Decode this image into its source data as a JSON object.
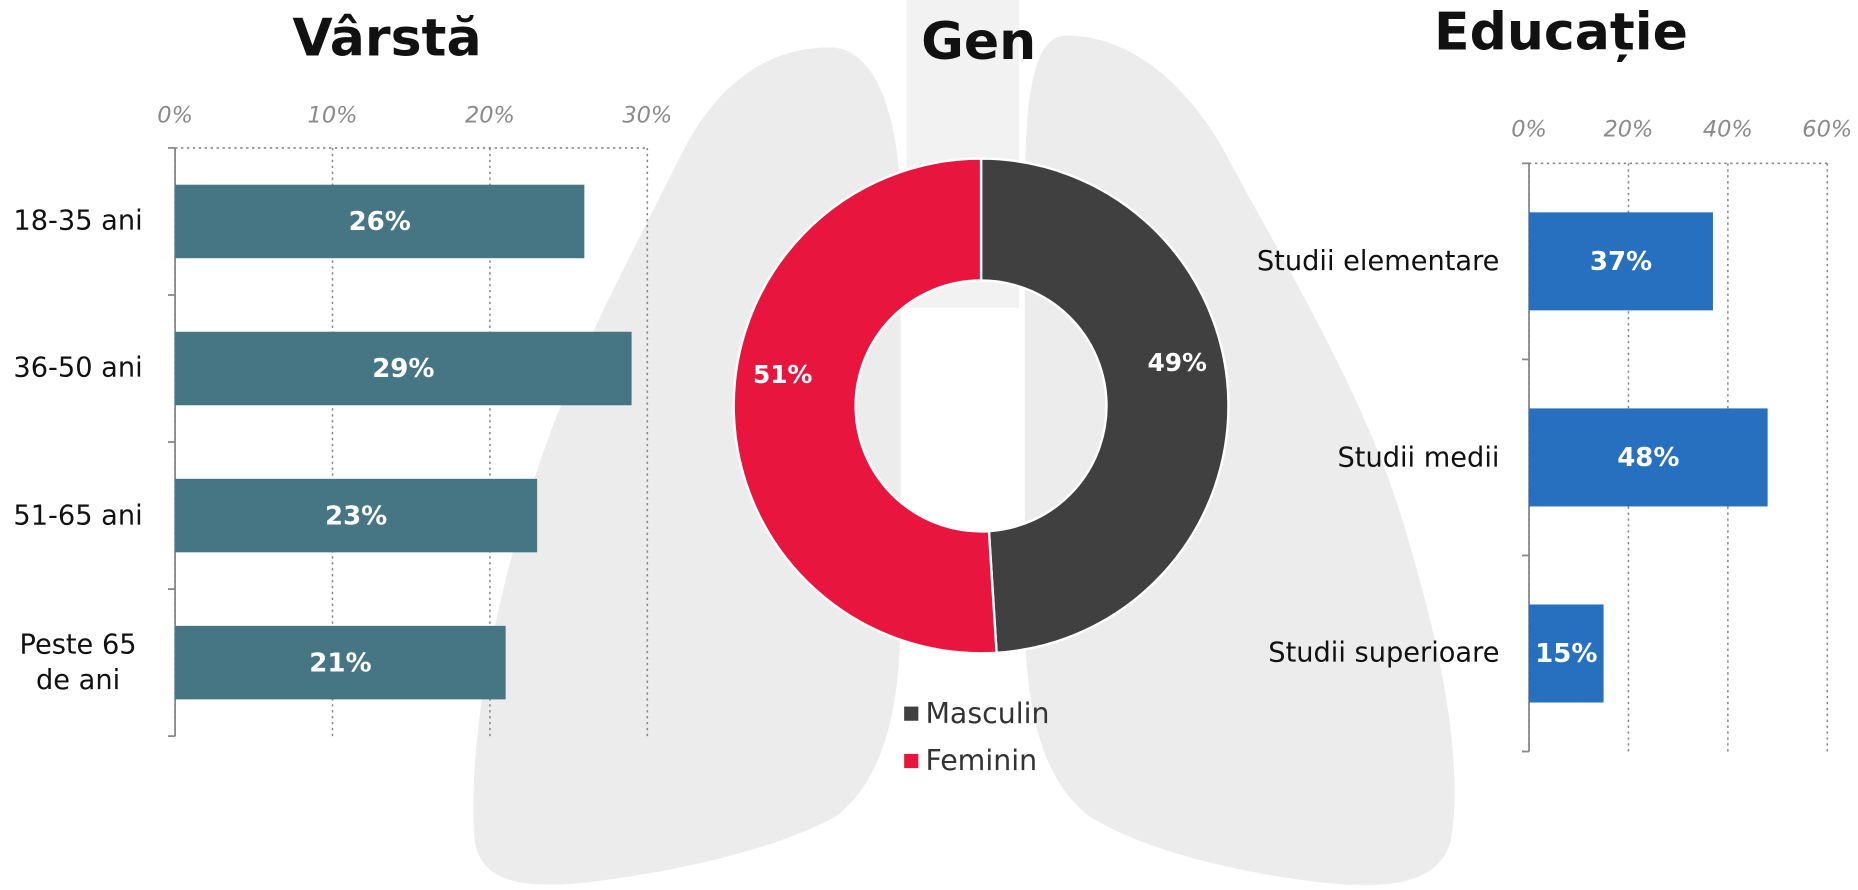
{
  "chart_data": [
    {
      "type": "hbar",
      "title": "Vârstă",
      "categories": [
        "18-35 ani",
        "36-50 ani",
        "51-65 ani",
        "Peste 65 de ani"
      ],
      "values": [
        26,
        29,
        23,
        21
      ],
      "value_labels": [
        "26%",
        "29%",
        "23%",
        "21%"
      ],
      "color": "#467584",
      "xlim": [
        0,
        30
      ],
      "xticks": [
        {
          "value": 0,
          "label": "0%"
        },
        {
          "value": 10,
          "label": "10%"
        },
        {
          "value": 20,
          "label": "20%"
        },
        {
          "value": 30,
          "label": "30%"
        }
      ],
      "grid": true
    },
    {
      "type": "donut",
      "title": "Gen",
      "categories": [
        "Masculin",
        "Feminin"
      ],
      "values": [
        49,
        51
      ],
      "value_labels": [
        "49%",
        "51%"
      ],
      "colors": [
        "#404040",
        "#e8163f"
      ]
    },
    {
      "type": "hbar",
      "title": "Educație",
      "categories": [
        "Studii elementare",
        "Studii medii",
        "Studii superioare"
      ],
      "values": [
        37,
        48,
        15
      ],
      "value_labels": [
        "37%",
        "48%",
        "15%"
      ],
      "color": "#2670bf",
      "xlim": [
        0,
        60
      ],
      "xticks": [
        {
          "value": 0,
          "label": "0%"
        },
        {
          "value": 20,
          "label": "20%"
        },
        {
          "value": 40,
          "label": "40%"
        },
        {
          "value": 60,
          "label": "60%"
        }
      ],
      "grid": true
    }
  ]
}
